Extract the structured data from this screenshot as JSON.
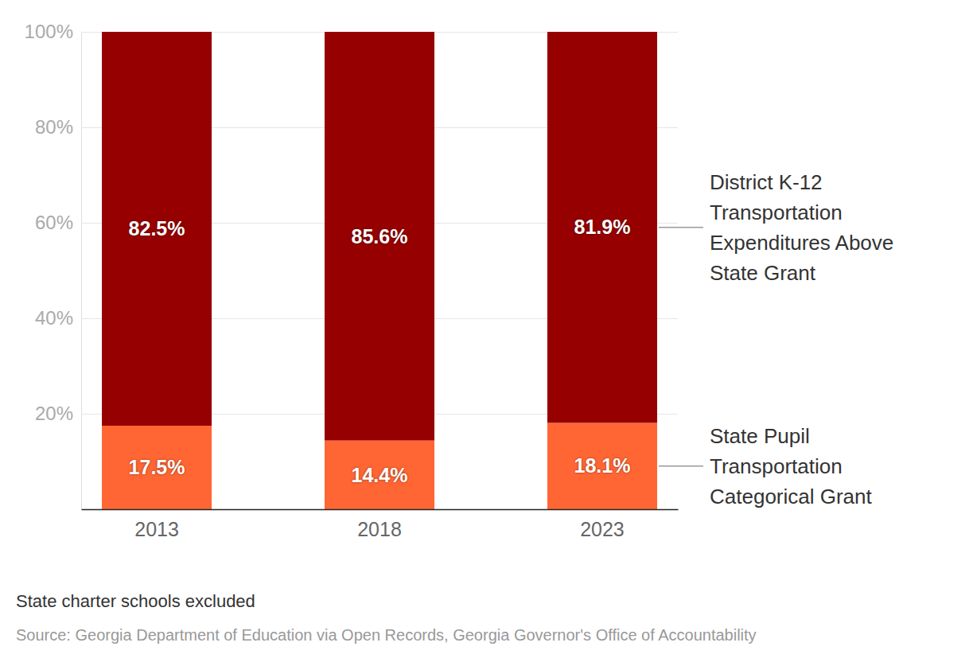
{
  "chart_data": {
    "type": "bar",
    "stacked": true,
    "data_labels": true,
    "grid": true,
    "legend": "right",
    "categories": [
      "2013",
      "2018",
      "2023"
    ],
    "series": [
      {
        "name": "State Pupil Transportation Categorical Grant",
        "color": "#ff6633",
        "values": [
          17.5,
          14.4,
          18.1
        ],
        "value_labels": [
          "17.5%",
          "14.4%",
          "18.1%"
        ]
      },
      {
        "name": "District K-12 Transportation Expenditures Above State Grant",
        "color": "#960000",
        "values": [
          82.5,
          85.6,
          81.9
        ],
        "value_labels": [
          "82.5%",
          "85.6%",
          "81.9%"
        ]
      }
    ],
    "ylim": [
      0,
      100
    ],
    "yticks": [
      {
        "value": 20,
        "label": "20%"
      },
      {
        "value": 40,
        "label": "40%"
      },
      {
        "value": 60,
        "label": "60%"
      },
      {
        "value": 80,
        "label": "80%"
      },
      {
        "value": 100,
        "label": "100%"
      }
    ],
    "annotations": [
      "State charter schools excluded",
      "Source: Georgia Department of Education via Open Records, Georgia Governor's Office of Accountability"
    ]
  }
}
